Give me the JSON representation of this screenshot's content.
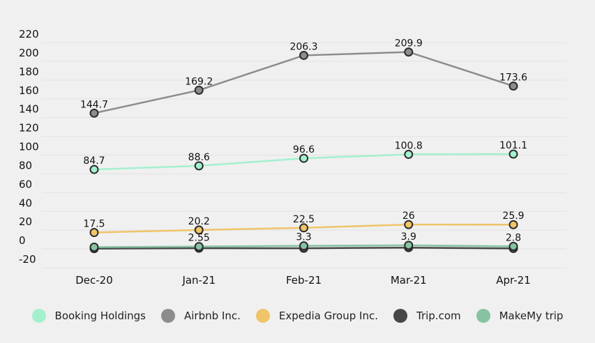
{
  "chart_data": {
    "type": "line",
    "categories": [
      "Dec-20",
      "Jan-21",
      "Feb-21",
      "Mar-21",
      "Apr-21"
    ],
    "yticks": [
      "220",
      "200",
      "180",
      "160",
      "140",
      "120",
      "100",
      "80",
      "60",
      "40",
      "20",
      "0",
      "-20"
    ],
    "ylim": [
      -20,
      220
    ],
    "grid": true,
    "legend_position": "bottom",
    "series": [
      {
        "name": "Booking Holdings",
        "color": "#a3f0cf",
        "values": [
          84.7,
          88.6,
          96.6,
          100.8,
          101.1
        ],
        "labels": [
          "84.7",
          "88.6",
          "96.6",
          "100.8",
          "101.1"
        ]
      },
      {
        "name": "Airbnb Inc.",
        "color": "#8c8c8c",
        "values": [
          144.7,
          169.2,
          206.3,
          209.9,
          173.6
        ],
        "labels": [
          "144.7",
          "169.2",
          "206.3",
          "209.9",
          "173.6"
        ]
      },
      {
        "name": "Expedia Group Inc.",
        "color": "#f0c468",
        "values": [
          17.5,
          20.2,
          22.5,
          26,
          25.9
        ],
        "labels": [
          "17.5",
          "20.2",
          "22.5",
          "26",
          "25.9"
        ]
      },
      {
        "name": "Trip.com",
        "color": "#474747",
        "values": [
          0.3,
          0.8,
          0.7,
          1.4,
          0.5
        ],
        "labels": []
      },
      {
        "name": "MakeMy trip",
        "color": "#86c3a2",
        "values": [
          1.9,
          2.55,
          3.3,
          3.9,
          2.8
        ],
        "labels": [
          "",
          "2.55",
          "3.3",
          "3.9",
          "2.8"
        ]
      }
    ]
  }
}
